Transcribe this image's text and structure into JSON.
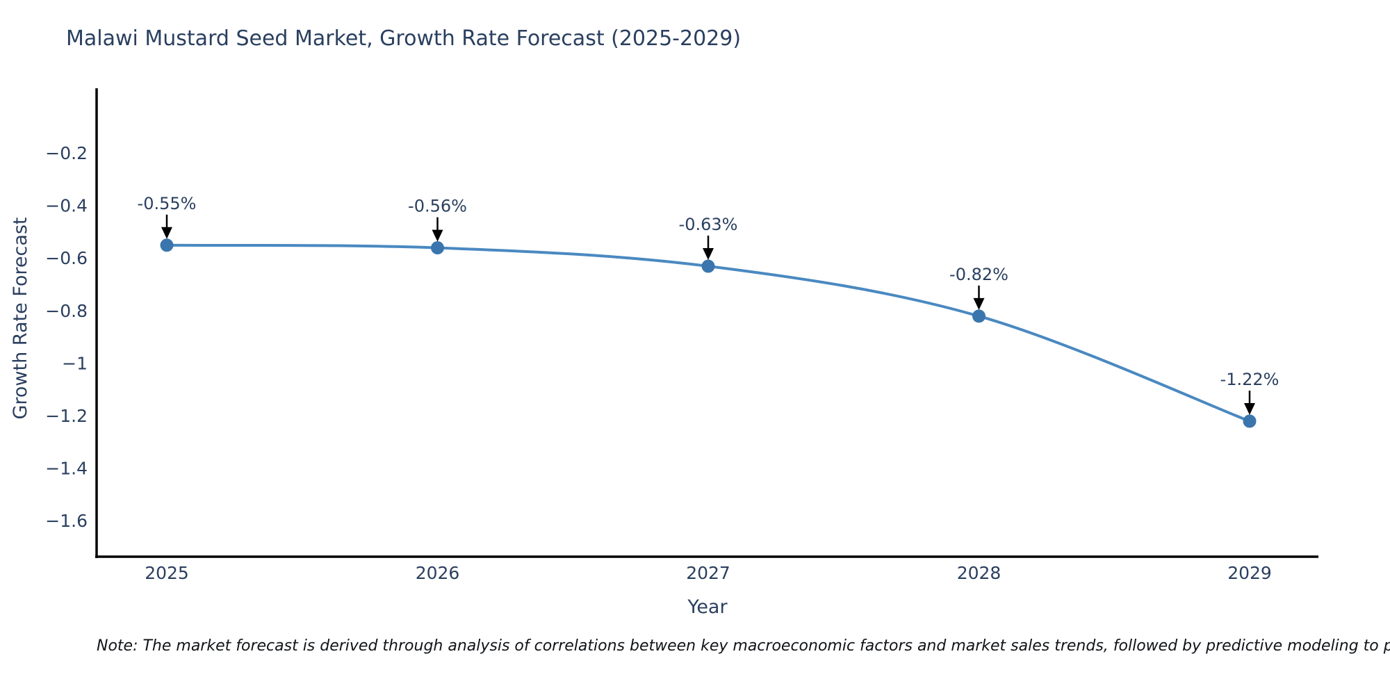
{
  "title": "Malawi Mustard Seed Market, Growth Rate Forecast (2025-2029)",
  "note": "Note: The market forecast is derived through analysis of correlations between key macroeconomic factors and market sales trends, followed by predictive modeling to project future sales.",
  "chart_data": {
    "type": "line",
    "title": "Malawi Mustard Seed Market, Growth Rate Forecast (2025-2029)",
    "xlabel": "Year",
    "ylabel": "Growth Rate Forecast",
    "x": [
      2025,
      2026,
      2027,
      2028,
      2029
    ],
    "series": [
      {
        "name": "Growth Rate Forecast",
        "values": [
          -0.55,
          -0.56,
          -0.63,
          -0.82,
          -1.22
        ]
      }
    ],
    "point_labels": [
      "-0.55%",
      "-0.56%",
      "-0.63%",
      "-0.82%",
      "-1.22%"
    ],
    "xtick_labels": [
      "2025",
      "2026",
      "2027",
      "2028",
      "2029"
    ],
    "ytick_values": [
      -0.2,
      -0.4,
      -0.6,
      -0.8,
      -1,
      -1.2,
      -1.4,
      -1.6
    ],
    "ytick_labels": [
      "−0.2",
      "−0.4",
      "−0.6",
      "−0.8",
      "−1",
      "−1.2",
      "−1.4",
      "−1.6"
    ],
    "ylim": [
      0.05,
      -1.78
    ],
    "grid": false,
    "legend": "none",
    "line_shape": "spline",
    "annotations": "black arrow pointing down from each value label to its data point",
    "colors": {
      "line": "#4a89c1",
      "marker": "#3a76ad",
      "axis": "#000000",
      "text": "#2a3f5f",
      "annotation_arrow": "#000000",
      "note_text": "#101418",
      "background": "#ffffff"
    }
  }
}
